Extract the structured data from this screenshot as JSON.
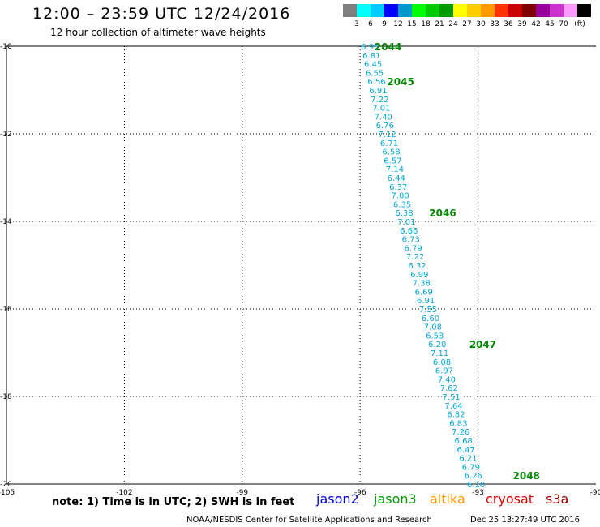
{
  "header": {
    "title": "12:00 – 23:59 UTC 12/24/2016",
    "subtitle": "12 hour collection of altimeter wave heights"
  },
  "colorbar": {
    "labels": [
      "3",
      "6",
      "9",
      "12",
      "15",
      "18",
      "21",
      "24",
      "27",
      "30",
      "33",
      "36",
      "39",
      "42",
      "45",
      "70"
    ],
    "unit": "(ft)",
    "colors": [
      "#808080",
      "#00ffff",
      "#00ccff",
      "#0000ff",
      "#0099cc",
      "#00ff00",
      "#00cc00",
      "#009900",
      "#ffff00",
      "#ffcc00",
      "#ff9900",
      "#ff3300",
      "#cc0000",
      "#800000",
      "#990099",
      "#cc33cc",
      "#ff99ff",
      "#000000"
    ]
  },
  "chart_data": {
    "type": "scatter",
    "title": "12:00 – 23:59 UTC 12/24/2016",
    "subtitle": "12 hour collection of altimeter wave heights",
    "xlim": [
      -105,
      -90
    ],
    "ylim": [
      -20,
      -10
    ],
    "xticks": [
      "-105",
      "-102",
      "-99",
      "-96",
      "-93",
      "-90"
    ],
    "yticks": [
      "-10",
      "-12",
      "-14",
      "-16",
      "-18",
      "-20"
    ],
    "grid": true,
    "track_color": "#00a8d8",
    "time_label_color": "#008800",
    "points": [
      {
        "lon": -95.75,
        "lat": -10.0,
        "swh": "6.95"
      },
      {
        "lon": -95.71,
        "lat": -10.2,
        "swh": "6.81"
      },
      {
        "lon": -95.67,
        "lat": -10.4,
        "swh": "6.45"
      },
      {
        "lon": -95.63,
        "lat": -10.6,
        "swh": "6.55"
      },
      {
        "lon": -95.58,
        "lat": -10.8,
        "swh": "6.56"
      },
      {
        "lon": -95.54,
        "lat": -11.0,
        "swh": "6.91"
      },
      {
        "lon": -95.5,
        "lat": -11.2,
        "swh": "7.22"
      },
      {
        "lon": -95.46,
        "lat": -11.4,
        "swh": "7.01"
      },
      {
        "lon": -95.41,
        "lat": -11.6,
        "swh": "7.40"
      },
      {
        "lon": -95.37,
        "lat": -11.8,
        "swh": "6.76"
      },
      {
        "lon": -95.31,
        "lat": -12.0,
        "swh": "7.12"
      },
      {
        "lon": -95.26,
        "lat": -12.2,
        "swh": "6.71"
      },
      {
        "lon": -95.21,
        "lat": -12.4,
        "swh": "6.58"
      },
      {
        "lon": -95.17,
        "lat": -12.6,
        "swh": "6.57"
      },
      {
        "lon": -95.12,
        "lat": -12.8,
        "swh": "7.14"
      },
      {
        "lon": -95.08,
        "lat": -13.0,
        "swh": "6.44"
      },
      {
        "lon": -95.03,
        "lat": -13.2,
        "swh": "6.37"
      },
      {
        "lon": -94.98,
        "lat": -13.4,
        "swh": "7.00"
      },
      {
        "lon": -94.93,
        "lat": -13.6,
        "swh": "6.35"
      },
      {
        "lon": -94.88,
        "lat": -13.8,
        "swh": "6.38"
      },
      {
        "lon": -94.82,
        "lat": -14.0,
        "swh": "7.01"
      },
      {
        "lon": -94.76,
        "lat": -14.2,
        "swh": "6.66"
      },
      {
        "lon": -94.71,
        "lat": -14.4,
        "swh": "6.73"
      },
      {
        "lon": -94.65,
        "lat": -14.6,
        "swh": "6.79"
      },
      {
        "lon": -94.6,
        "lat": -14.8,
        "swh": "7.22"
      },
      {
        "lon": -94.55,
        "lat": -15.0,
        "swh": "6.32"
      },
      {
        "lon": -94.49,
        "lat": -15.2,
        "swh": "6.99"
      },
      {
        "lon": -94.44,
        "lat": -15.4,
        "swh": "7.38"
      },
      {
        "lon": -94.38,
        "lat": -15.6,
        "swh": "6.69"
      },
      {
        "lon": -94.33,
        "lat": -15.8,
        "swh": "6.91"
      },
      {
        "lon": -94.27,
        "lat": -16.0,
        "swh": "7.55"
      },
      {
        "lon": -94.21,
        "lat": -16.2,
        "swh": "6.60"
      },
      {
        "lon": -94.15,
        "lat": -16.4,
        "swh": "7.08"
      },
      {
        "lon": -94.1,
        "lat": -16.6,
        "swh": "6.53"
      },
      {
        "lon": -94.04,
        "lat": -16.8,
        "swh": "6.20"
      },
      {
        "lon": -93.98,
        "lat": -17.0,
        "swh": "7.11"
      },
      {
        "lon": -93.92,
        "lat": -17.2,
        "swh": "6.08"
      },
      {
        "lon": -93.86,
        "lat": -17.4,
        "swh": "6.97"
      },
      {
        "lon": -93.8,
        "lat": -17.6,
        "swh": "7.40"
      },
      {
        "lon": -93.74,
        "lat": -17.8,
        "swh": "7.62"
      },
      {
        "lon": -93.68,
        "lat": -18.0,
        "swh": "7.51"
      },
      {
        "lon": -93.62,
        "lat": -18.2,
        "swh": "7.64"
      },
      {
        "lon": -93.56,
        "lat": -18.4,
        "swh": "6.82"
      },
      {
        "lon": -93.5,
        "lat": -18.6,
        "swh": "6.83"
      },
      {
        "lon": -93.44,
        "lat": -18.8,
        "swh": "7.26"
      },
      {
        "lon": -93.37,
        "lat": -19.0,
        "swh": "6.68"
      },
      {
        "lon": -93.31,
        "lat": -19.2,
        "swh": "6.47"
      },
      {
        "lon": -93.25,
        "lat": -19.4,
        "swh": "6.21"
      },
      {
        "lon": -93.18,
        "lat": -19.6,
        "swh": "6.79"
      },
      {
        "lon": -93.12,
        "lat": -19.8,
        "swh": "6.26"
      },
      {
        "lon": -93.05,
        "lat": -20.0,
        "swh": "6.10"
      }
    ],
    "time_labels": [
      {
        "lon": -95.29,
        "lat": -10.0,
        "text": "2044"
      },
      {
        "lon": -94.97,
        "lat": -10.8,
        "text": "2045"
      },
      {
        "lon": -93.9,
        "lat": -13.8,
        "text": "2046"
      },
      {
        "lon": -92.88,
        "lat": -16.8,
        "text": "2047"
      },
      {
        "lon": -91.77,
        "lat": -19.8,
        "text": "2048"
      }
    ]
  },
  "footer": {
    "note": "note:  1) Time is in UTC;  2) SWH is in feet",
    "satellites": [
      {
        "name": "jason2",
        "color": "#0000dd"
      },
      {
        "name": "jason3",
        "color": "#009900"
      },
      {
        "name": "altika",
        "color": "#ff9900"
      },
      {
        "name": "cryosat",
        "color": "#dd0000"
      },
      {
        "name": "s3a",
        "color": "#990000"
      }
    ],
    "credit": "NOAA/NESDIS Center for Satellite Applications and Research",
    "timestamp": "Dec 25 13:27:49 UTC 2016"
  }
}
